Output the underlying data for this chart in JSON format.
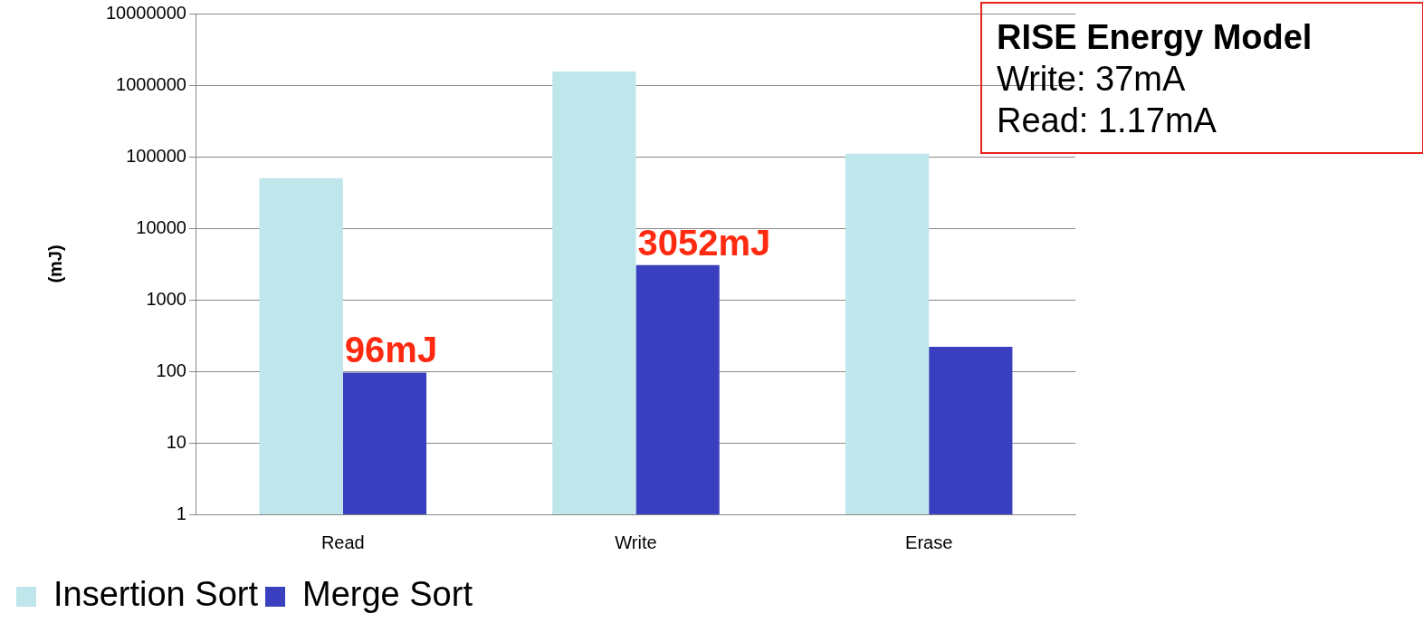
{
  "chart_data": {
    "type": "bar",
    "ylabel": "(mJ)",
    "categories": [
      "Read",
      "Write",
      "Erase"
    ],
    "series": [
      {
        "name": "Insertion Sort",
        "color": "#bfe6ea",
        "values": [
          50000,
          1550000,
          110000
        ]
      },
      {
        "name": "Merge Sort",
        "color": "#3a3fbf",
        "values": [
          96,
          3052,
          220
        ],
        "value_labels": [
          "96mJ",
          "3052mJ",
          null
        ]
      }
    ],
    "log": "y",
    "ylim": [
      1,
      10000000
    ],
    "yticks": [
      1,
      10,
      100,
      1000,
      10000,
      100000,
      1000000,
      10000000
    ],
    "grid": "y",
    "legend": "bottom",
    "annotations": [
      "RISE Energy Model",
      "Write: 37mA",
      "Read: 1.17mA"
    ]
  }
}
